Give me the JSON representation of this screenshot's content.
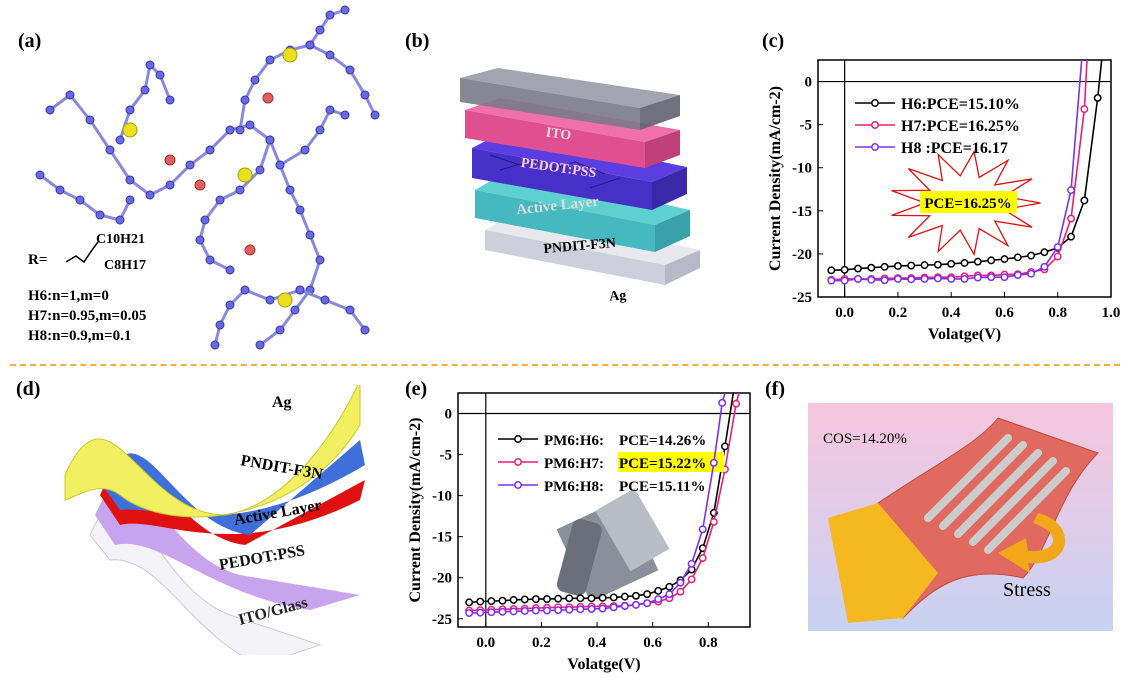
{
  "panels": {
    "a": {
      "label": "(a)",
      "r_prefix": "R=",
      "r_sub1": "C10H21",
      "r_sub2": "C8H17",
      "compositions": [
        "H6:n=1,m=0",
        "H7:n=0.95,m=0.05",
        "H8:n=0.9,m=0.1"
      ]
    },
    "b": {
      "label": "(b)",
      "layers": [
        "ITO",
        "PEDOT:PSS",
        "Active Layer",
        "PNDIT-F3N",
        "Ag"
      ]
    },
    "c": {
      "label": "(c)",
      "callout": "PCE=16.25%"
    },
    "d": {
      "label": "(d)",
      "layers": [
        "Ag",
        "PNDIT-F3N",
        "Active Layer",
        "PEDOT:PSS",
        "ITO/Glass"
      ]
    },
    "e": {
      "label": "(e)"
    },
    "f": {
      "label": "(f)",
      "cos": "COS=14.20%",
      "stress": "Stress"
    }
  },
  "colors": {
    "black": "#000000",
    "pink": "#ee1c77",
    "purple": "#7b2ff7",
    "highlight": "#ffff00",
    "separator": "#f0b040"
  },
  "chart_data": [
    {
      "id": "c",
      "type": "line",
      "xlabel": "Volatge(V)",
      "ylabel": "Current Density(mA/cm-2)",
      "xlim": [
        -0.1,
        1.0
      ],
      "ylim": [
        -25,
        2.5
      ],
      "xticks": [
        "0.0",
        "0.2",
        "0.4",
        "0.6",
        "0.8",
        "1.0"
      ],
      "yticks": [
        "0",
        "-5",
        "-10",
        "-15",
        "-20",
        "-25"
      ],
      "legend": "top-left",
      "series": [
        {
          "name": "H6:PCE=15.10%",
          "color": "#000000",
          "x": [
            -0.05,
            0,
            0.05,
            0.1,
            0.15,
            0.2,
            0.25,
            0.3,
            0.35,
            0.4,
            0.45,
            0.5,
            0.55,
            0.6,
            0.65,
            0.7,
            0.75,
            0.8,
            0.85,
            0.9,
            0.95,
            0.965
          ],
          "y": [
            -21.9,
            -21.85,
            -21.7,
            -21.6,
            -21.5,
            -21.4,
            -21.35,
            -21.3,
            -21.25,
            -21.15,
            -21.05,
            -20.9,
            -20.75,
            -20.6,
            -20.4,
            -20.2,
            -19.8,
            -19.3,
            -18.0,
            -13.8,
            -1.9,
            2.5
          ]
        },
        {
          "name": "H7:PCE=16.25%",
          "color": "#ee1c77",
          "x": [
            -0.05,
            0,
            0.05,
            0.1,
            0.15,
            0.2,
            0.25,
            0.3,
            0.35,
            0.4,
            0.45,
            0.5,
            0.55,
            0.6,
            0.65,
            0.7,
            0.75,
            0.8,
            0.85,
            0.9,
            0.91
          ],
          "y": [
            -23.0,
            -22.9,
            -22.9,
            -22.9,
            -22.85,
            -22.8,
            -22.8,
            -22.75,
            -22.7,
            -22.7,
            -22.6,
            -22.5,
            -22.5,
            -22.4,
            -22.35,
            -22.1,
            -21.8,
            -20.3,
            -15.9,
            -3.2,
            2.5
          ]
        },
        {
          "name": "H8 :PCE=16.17",
          "color": "#7b2ff7",
          "x": [
            -0.05,
            0,
            0.05,
            0.1,
            0.15,
            0.2,
            0.25,
            0.3,
            0.35,
            0.4,
            0.45,
            0.5,
            0.55,
            0.6,
            0.65,
            0.7,
            0.75,
            0.8,
            0.85,
            0.89
          ],
          "y": [
            -23.1,
            -23.1,
            -22.9,
            -23.0,
            -23.05,
            -22.9,
            -22.95,
            -22.9,
            -22.85,
            -22.9,
            -22.9,
            -22.75,
            -22.7,
            -22.7,
            -22.45,
            -22.3,
            -21.5,
            -19.2,
            -12.6,
            2.5
          ]
        }
      ]
    },
    {
      "id": "e",
      "type": "line",
      "xlabel": "Volatge(V)",
      "ylabel": "Current Density(mA/cm-2)",
      "xlim": [
        -0.1,
        0.95
      ],
      "ylim": [
        -26,
        2.5
      ],
      "xticks": [
        "0.0",
        "0.2",
        "0.4",
        "0.6",
        "0.8"
      ],
      "yticks": [
        "0",
        "-5",
        "-10",
        "-15",
        "-20",
        "-25"
      ],
      "legend": "top-left",
      "series": [
        {
          "name_prefix": "PM6:H6",
          "name": "PCE=14.26%",
          "color": "#000000",
          "x": [
            -0.06,
            -0.02,
            0.02,
            0.06,
            0.1,
            0.14,
            0.18,
            0.22,
            0.26,
            0.3,
            0.34,
            0.38,
            0.42,
            0.46,
            0.5,
            0.54,
            0.58,
            0.62,
            0.66,
            0.7,
            0.74,
            0.78,
            0.82,
            0.86,
            0.89
          ],
          "y": [
            -23.0,
            -22.9,
            -22.85,
            -22.8,
            -22.7,
            -22.65,
            -22.6,
            -22.6,
            -22.55,
            -22.5,
            -22.5,
            -22.5,
            -22.45,
            -22.4,
            -22.3,
            -22.2,
            -22.0,
            -21.6,
            -21.1,
            -20.3,
            -19.0,
            -16.4,
            -12.1,
            -4.0,
            2.5
          ]
        },
        {
          "name_prefix": "PM6:H7",
          "name": "PCE=15.22%",
          "highlight": true,
          "color": "#ee1c77",
          "x": [
            -0.06,
            -0.02,
            0.02,
            0.06,
            0.1,
            0.14,
            0.18,
            0.22,
            0.26,
            0.3,
            0.34,
            0.38,
            0.42,
            0.46,
            0.5,
            0.54,
            0.58,
            0.62,
            0.66,
            0.7,
            0.74,
            0.78,
            0.82,
            0.86,
            0.9,
            0.91
          ],
          "y": [
            -24.0,
            -23.95,
            -23.9,
            -23.85,
            -23.8,
            -23.75,
            -23.7,
            -23.65,
            -23.6,
            -23.6,
            -23.55,
            -23.5,
            -23.5,
            -23.45,
            -23.4,
            -23.3,
            -23.1,
            -22.9,
            -22.5,
            -21.7,
            -20.2,
            -17.6,
            -13.2,
            -6.8,
            1.2,
            2.5
          ]
        },
        {
          "name_prefix": "PM6:H8",
          "name": "PCE=15.11%",
          "color": "#7b2ff7",
          "x": [
            -0.06,
            -0.02,
            0.02,
            0.06,
            0.1,
            0.14,
            0.18,
            0.22,
            0.26,
            0.3,
            0.34,
            0.38,
            0.42,
            0.46,
            0.5,
            0.54,
            0.58,
            0.62,
            0.66,
            0.7,
            0.74,
            0.78,
            0.82,
            0.85,
            0.86
          ],
          "y": [
            -24.3,
            -24.25,
            -24.2,
            -24.15,
            -24.1,
            -24.05,
            -24.0,
            -24.0,
            -23.95,
            -23.9,
            -23.85,
            -23.8,
            -23.75,
            -23.6,
            -23.45,
            -23.3,
            -23.1,
            -22.6,
            -22.0,
            -20.6,
            -18.3,
            -14.1,
            -6.0,
            1.3,
            2.5
          ]
        }
      ]
    }
  ]
}
